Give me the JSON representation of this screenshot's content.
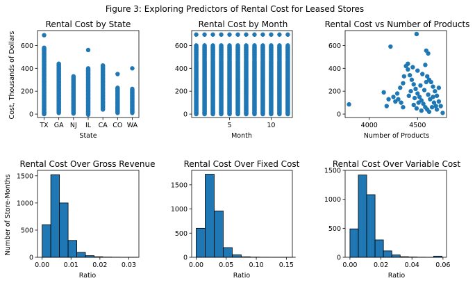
{
  "title": "Figure 3: Exploring Predictors of Rental Cost for Leased Stores",
  "colors": {
    "marker": "#1f77b4",
    "bar_edge": "#000000",
    "axis": "#000000"
  },
  "chart_data": [
    {
      "type": "scatter",
      "title": "Rental Cost by State",
      "xlabel": "State",
      "ylabel": "Cost, Thousands of Dollars",
      "categories": [
        "TX",
        "GA",
        "NJ",
        "IL",
        "CA",
        "CO",
        "WA"
      ],
      "ylim": [
        -30,
        730
      ],
      "yticks": [
        0,
        200,
        400,
        600
      ],
      "series": [
        {
          "category": "TX",
          "points": [
            0,
            15,
            40,
            70,
            100,
            130,
            160,
            190,
            220,
            250,
            280,
            310,
            340,
            370,
            400,
            430,
            460,
            480,
            520,
            560,
            580,
            690
          ]
        },
        {
          "category": "GA",
          "points": [
            10,
            40,
            70,
            100,
            130,
            160,
            190,
            220,
            250,
            280,
            310,
            340,
            370,
            400,
            440
          ]
        },
        {
          "category": "NJ",
          "points": [
            5,
            30,
            60,
            90,
            120,
            150,
            180,
            210,
            240,
            270,
            300,
            330
          ]
        },
        {
          "category": "IL",
          "points": [
            -5,
            20,
            50,
            80,
            110,
            140,
            170,
            200,
            230,
            260,
            290,
            320,
            350,
            380,
            400,
            560
          ]
        },
        {
          "category": "CA",
          "points": [
            40,
            70,
            100,
            130,
            160,
            190,
            220,
            250,
            280,
            310,
            340,
            370,
            400,
            425
          ]
        },
        {
          "category": "CO",
          "points": [
            10,
            40,
            60,
            100,
            130,
            170,
            200,
            230,
            350
          ]
        },
        {
          "category": "WA",
          "points": [
            10,
            40,
            70,
            100,
            130,
            160,
            190,
            220,
            400
          ]
        }
      ]
    },
    {
      "type": "scatter",
      "title": "Rental Cost by Month",
      "xlabel": "Month",
      "ylabel": "",
      "x": [
        1,
        2,
        3,
        4,
        5,
        6,
        7,
        8,
        9,
        10,
        11,
        12
      ],
      "xlim": [
        0.45,
        12.55
      ],
      "ylim": [
        -30,
        730
      ],
      "xticks": [
        5,
        10
      ],
      "yticks": [
        0,
        200,
        400,
        600
      ],
      "column_values": [
        0,
        15,
        30,
        45,
        60,
        75,
        90,
        105,
        120,
        135,
        150,
        165,
        180,
        195,
        210,
        225,
        240,
        255,
        270,
        285,
        300,
        315,
        330,
        345,
        360,
        375,
        390,
        405,
        420,
        440,
        455,
        500,
        520,
        540,
        560,
        580,
        600,
        695
      ]
    },
    {
      "type": "scatter",
      "title": "Rental Cost vs Number of Products",
      "xlabel": "Number of Products",
      "ylabel": "",
      "xlim": [
        3750,
        4800
      ],
      "ylim": [
        -30,
        730
      ],
      "xticks": [
        4000,
        4500
      ],
      "yticks": [
        0,
        200,
        400,
        600
      ],
      "points": [
        [
          3790,
          85
        ],
        [
          4220,
          590
        ],
        [
          4490,
          700
        ],
        [
          4590,
          555
        ],
        [
          4610,
          530
        ],
        [
          4150,
          190
        ],
        [
          4200,
          130
        ],
        [
          4180,
          70
        ],
        [
          4270,
          110
        ],
        [
          4300,
          130
        ],
        [
          4330,
          100
        ],
        [
          4350,
          60
        ],
        [
          4380,
          420
        ],
        [
          4400,
          390
        ],
        [
          4420,
          340
        ],
        [
          4440,
          300
        ],
        [
          4460,
          260
        ],
        [
          4480,
          220
        ],
        [
          4500,
          180
        ],
        [
          4520,
          150
        ],
        [
          4540,
          120
        ],
        [
          4560,
          90
        ],
        [
          4580,
          60
        ],
        [
          4600,
          40
        ],
        [
          4620,
          300
        ],
        [
          4640,
          280
        ],
        [
          4660,
          240
        ],
        [
          4680,
          200
        ],
        [
          4700,
          160
        ],
        [
          4720,
          110
        ],
        [
          4740,
          70
        ],
        [
          4760,
          10
        ],
        [
          4700,
          40
        ],
        [
          4650,
          60
        ],
        [
          4600,
          330
        ],
        [
          4550,
          350
        ],
        [
          4500,
          380
        ],
        [
          4450,
          410
        ],
        [
          4400,
          440
        ],
        [
          4350,
          270
        ],
        [
          4320,
          230
        ],
        [
          4290,
          180
        ],
        [
          4250,
          150
        ],
        [
          4430,
          200
        ],
        [
          4470,
          140
        ],
        [
          4510,
          100
        ],
        [
          4530,
          250
        ],
        [
          4570,
          210
        ],
        [
          4610,
          170
        ],
        [
          4630,
          130
        ],
        [
          4670,
          100
        ],
        [
          4690,
          70
        ],
        [
          4720,
          230
        ],
        [
          4580,
          430
        ],
        [
          4360,
          330
        ],
        [
          4410,
          160
        ],
        [
          4460,
          80
        ],
        [
          4490,
          50
        ],
        [
          4540,
          30
        ],
        [
          4620,
          20
        ],
        [
          4660,
          150
        ],
        [
          4590,
          280
        ]
      ]
    },
    {
      "type": "bar",
      "subtype": "histogram",
      "title": "Rental Cost Over Gross Revenue",
      "xlabel": "Ratio",
      "ylabel": "Number of Store-Months",
      "xlim": [
        -0.0016,
        0.0335
      ],
      "ylim": [
        0,
        1600
      ],
      "xticks": [
        0.0,
        0.01,
        0.02,
        0.03
      ],
      "xtick_labels": [
        "0.00",
        "0.01",
        "0.02",
        "0.03"
      ],
      "yticks": [
        0,
        500,
        1000,
        1500
      ],
      "bin_edges": [
        0.0,
        0.003,
        0.006,
        0.009,
        0.012,
        0.015,
        0.018,
        0.021,
        0.024,
        0.027,
        0.03,
        0.033
      ],
      "counts": [
        600,
        1520,
        1000,
        310,
        90,
        30,
        10,
        4,
        2,
        1,
        1
      ]
    },
    {
      "type": "bar",
      "subtype": "histogram",
      "title": "Rental Cost Over Fixed Cost",
      "xlabel": "Ratio",
      "ylabel": "",
      "xlim": [
        -0.0075,
        0.16
      ],
      "ylim": [
        0,
        1800
      ],
      "xticks": [
        0.0,
        0.05,
        0.1,
        0.15
      ],
      "xtick_labels": [
        "0.00",
        "0.05",
        "0.10",
        "0.15"
      ],
      "yticks": [
        0,
        500,
        1000,
        1500
      ],
      "bin_edges": [
        0.0,
        0.015,
        0.03,
        0.045,
        0.06,
        0.075,
        0.09,
        0.105,
        0.12,
        0.135,
        0.15,
        0.165
      ],
      "counts": [
        600,
        1720,
        960,
        200,
        50,
        10,
        4,
        2,
        1,
        1,
        1
      ]
    },
    {
      "type": "bar",
      "subtype": "histogram",
      "title": "Rental Cost Over Variable Cost",
      "xlabel": "Ratio",
      "ylabel": "",
      "xlim": [
        -0.0031,
        0.0623
      ],
      "ylim": [
        0,
        1500
      ],
      "xticks": [
        0.0,
        0.02,
        0.04,
        0.06
      ],
      "xtick_labels": [
        "0.00",
        "0.02",
        "0.04",
        "0.06"
      ],
      "yticks": [
        0,
        500,
        1000,
        1500
      ],
      "bin_edges": [
        0.0,
        0.0054,
        0.0108,
        0.0162,
        0.0216,
        0.027,
        0.0324,
        0.0378,
        0.0432,
        0.0486,
        0.054,
        0.0594
      ],
      "counts": [
        490,
        1420,
        1080,
        300,
        110,
        40,
        10,
        5,
        2,
        1,
        20
      ]
    }
  ]
}
